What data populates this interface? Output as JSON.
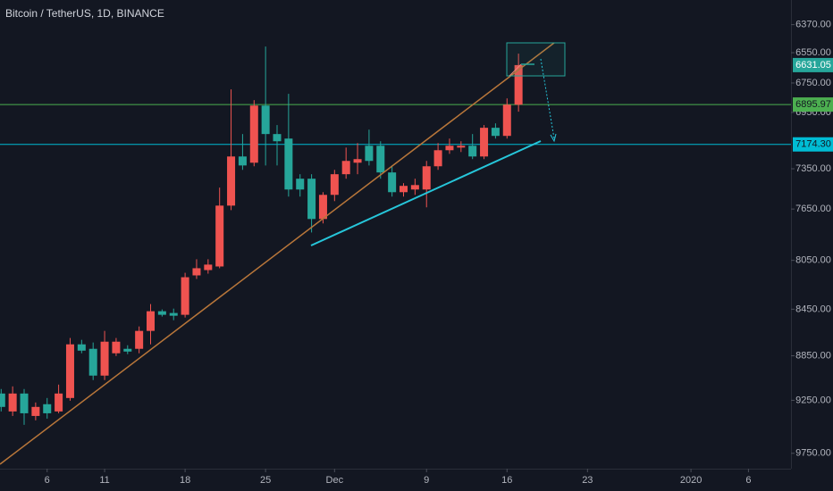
{
  "chart_data": {
    "type": "candlestick",
    "title": "Bitcoin / TetherUS, 1D, BINANCE",
    "x": [
      2,
      3,
      4,
      5,
      6,
      7,
      8,
      9,
      10,
      11,
      12,
      13,
      14,
      15,
      16,
      17,
      18,
      19,
      20,
      21,
      22,
      23,
      24,
      25,
      26,
      27,
      28,
      29,
      30,
      31,
      32,
      33,
      34,
      35,
      36,
      37,
      38,
      39,
      40,
      41,
      42,
      43,
      44,
      45,
      46,
      47
    ],
    "open": [
      9188,
      9353,
      9188,
      9395,
      9286,
      9353,
      9229,
      8750,
      8789,
      9026,
      8828,
      8789,
      8789,
      8634,
      8467,
      8482,
      8497,
      8171,
      8128,
      8099,
      7624,
      7261,
      7306,
      6903,
      7101,
      7133,
      7423,
      7423,
      7726,
      7543,
      7390,
      7306,
      7184,
      7184,
      7377,
      7523,
      7503,
      7503,
      7332,
      7216,
      7197,
      7184,
      7261,
      7057,
      7114,
      6897
    ],
    "high": [
      9353,
      9395,
      9478,
      9436,
      9420,
      9370,
      9254,
      8828,
      9066,
      9066,
      8852,
      8836,
      8828,
      8750,
      8512,
      8543,
      8520,
      8200,
      8157,
      8113,
      7658,
      7358,
      7332,
      7326,
      7326,
      7556,
      7556,
      7830,
      7760,
      7590,
      7423,
      7390,
      7326,
      7423,
      7556,
      7556,
      7543,
      7637,
      7358,
      7242,
      7229,
      7280,
      7280,
      7133,
      7133,
      6945
    ],
    "low": [
      9147,
      9123,
      9147,
      9270,
      9229,
      9107,
      8695,
      8711,
      8734,
      8634,
      8695,
      8758,
      8596,
      8407,
      8452,
      8445,
      8150,
      8041,
      8041,
      7489,
      6793,
      7101,
      6866,
      6510,
      7038,
      6823,
      7390,
      7390,
      7523,
      7358,
      7197,
      7165,
      7070,
      7152,
      7326,
      7456,
      7423,
      7293,
      7165,
      7133,
      7152,
      7101,
      7038,
      7026,
      6854,
      6556
    ],
    "close": [
      9311,
      9188,
      9370,
      9311,
      9370,
      9188,
      8750,
      8805,
      9026,
      8727,
      8727,
      8813,
      8634,
      8467,
      8497,
      8505,
      8186,
      8113,
      8084,
      7624,
      7261,
      7326,
      6903,
      7101,
      7152,
      7503,
      7503,
      7726,
      7543,
      7390,
      7293,
      7280,
      7293,
      7377,
      7523,
      7476,
      7470,
      7332,
      7216,
      7184,
      7184,
      7261,
      7057,
      7114,
      6897,
      6631.05
    ],
    "up_color": "#26a69a",
    "down_color": "#ef5350",
    "log_scale": true,
    "inverted": true,
    "grid": false,
    "xlim": [
      1.9,
      70.7
    ],
    "xticks": [
      6,
      11,
      18,
      25,
      {
        "value": 31,
        "label": "Dec"
      },
      {
        "value": 39,
        "label": "9"
      },
      {
        "value": 46,
        "label": "16"
      },
      {
        "value": 53,
        "label": "23"
      },
      {
        "value": 62,
        "label": "2020"
      },
      {
        "value": 67,
        "label": "6"
      }
    ],
    "ylim": [
      6216,
      9900
    ],
    "yticks": [
      {
        "value": 6370,
        "label": "6370.00"
      },
      {
        "value": 6550,
        "label": "6550.00"
      },
      {
        "value": 6750,
        "label": "6750.00"
      },
      {
        "value": 6950,
        "label": "6950.00"
      },
      {
        "value": 7350,
        "label": "7350.00"
      },
      {
        "value": 7650,
        "label": "7650.00"
      },
      {
        "value": 8050,
        "label": "8050.00"
      },
      {
        "value": 8450,
        "label": "8450.00"
      },
      {
        "value": 8850,
        "label": "8850.00"
      },
      {
        "value": 9250,
        "label": "9250.00"
      },
      {
        "value": 9750,
        "label": "9750.00"
      }
    ],
    "hlines": [
      {
        "value": 6895.97,
        "color": "#4caf50"
      },
      {
        "value": {
          "value": 7174.3,
          "label": "7174.30"
        },
        "color": "#00bcd4"
      }
    ]
  }
}
